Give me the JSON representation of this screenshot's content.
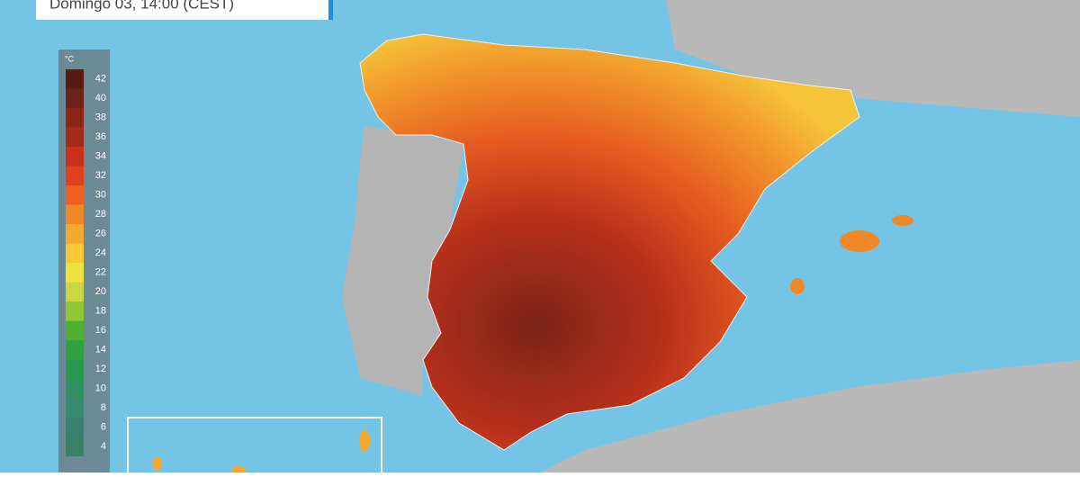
{
  "header": {
    "subtitle": "Domingo 03, 14:00 (CEST)"
  },
  "legend": {
    "unit": "°C",
    "steps": [
      {
        "value": 42,
        "color": "#5a1a14"
      },
      {
        "value": 40,
        "color": "#6b2018"
      },
      {
        "value": 38,
        "color": "#8a2518"
      },
      {
        "value": 36,
        "color": "#a52a18"
      },
      {
        "value": 34,
        "color": "#c8301a"
      },
      {
        "value": 32,
        "color": "#e0401e"
      },
      {
        "value": 30,
        "color": "#ee6020"
      },
      {
        "value": 28,
        "color": "#f08828"
      },
      {
        "value": 26,
        "color": "#f5a830"
      },
      {
        "value": 24,
        "color": "#f8c838"
      },
      {
        "value": 22,
        "color": "#f0e040"
      },
      {
        "value": 20,
        "color": "#c8d840"
      },
      {
        "value": 18,
        "color": "#90c838"
      },
      {
        "value": 16,
        "color": "#50b030"
      },
      {
        "value": 14,
        "color": "#30a040"
      },
      {
        "value": 12,
        "color": "#289850"
      },
      {
        "value": 10,
        "color": "#309060"
      },
      {
        "value": 8,
        "color": "#3a8a70"
      },
      {
        "value": 6,
        "color": "#3a8070"
      },
      {
        "value": 4,
        "color": "#388068"
      }
    ]
  }
}
